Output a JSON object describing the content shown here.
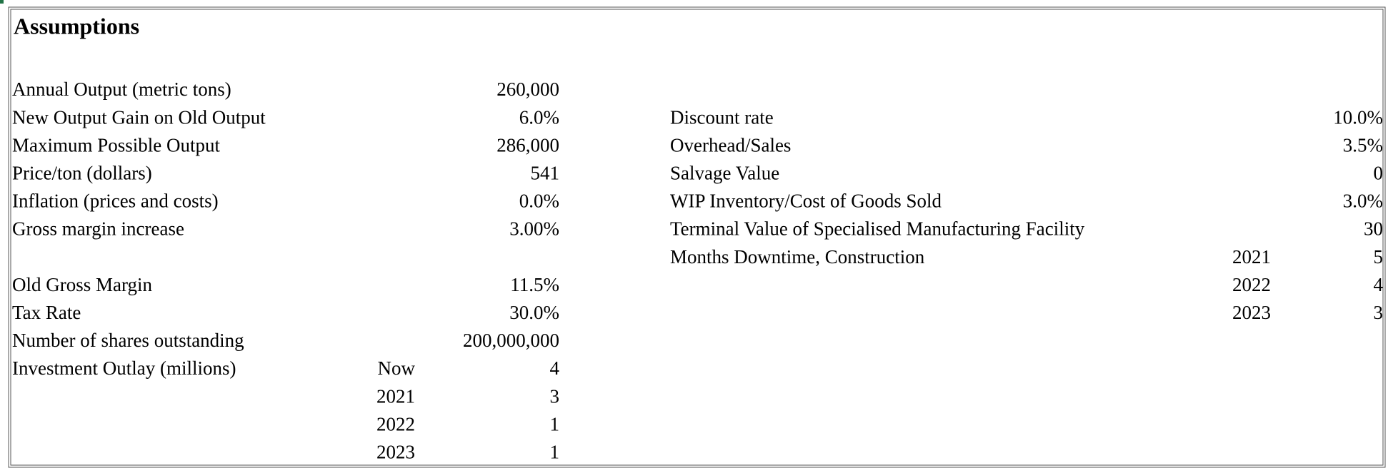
{
  "sheet": {
    "title": "Assumptions",
    "left_sections": [
      [
        {
          "label": "Annual Output (metric tons)",
          "value": "260,000"
        },
        {
          "label": "New Output Gain on Old Output",
          "value": "6.0%"
        },
        {
          "label": "Maximum Possible Output",
          "value": "286,000"
        },
        {
          "label": "Price/ton (dollars)",
          "value": "541"
        },
        {
          "label": "Inflation (prices and costs)",
          "value": "0.0%"
        },
        {
          "label": "Gross margin increase",
          "value": "3.00%"
        }
      ],
      [
        {
          "label": "Old Gross Margin",
          "value": "11.5%"
        },
        {
          "label": "Tax Rate",
          "value": "30.0%"
        },
        {
          "label": "Number of shares outstanding",
          "value": "200,000,000"
        },
        {
          "label": "Investment Outlay (millions)",
          "entries": [
            {
              "period": "Now",
              "value": "4"
            },
            {
              "period": "2021",
              "value": "3"
            },
            {
              "period": "2022",
              "value": "1"
            },
            {
              "period": "2023",
              "value": "1"
            }
          ]
        }
      ]
    ],
    "right_rows": [
      {
        "label": "Discount rate",
        "value": "10.0%"
      },
      {
        "label": "Overhead/Sales",
        "value": "3.5%"
      },
      {
        "label": "Salvage Value",
        "value": "0"
      },
      {
        "label": "WIP Inventory/Cost of Goods Sold",
        "value": "3.0%"
      },
      {
        "label": "Terminal Value of Specialised Manufacturing Facility",
        "value": "30"
      },
      {
        "label": "Months Downtime, Construction",
        "entries": [
          {
            "period": "2021",
            "value": "5"
          },
          {
            "period": "2022",
            "value": "4"
          },
          {
            "period": "2023",
            "value": "3"
          }
        ]
      }
    ]
  }
}
